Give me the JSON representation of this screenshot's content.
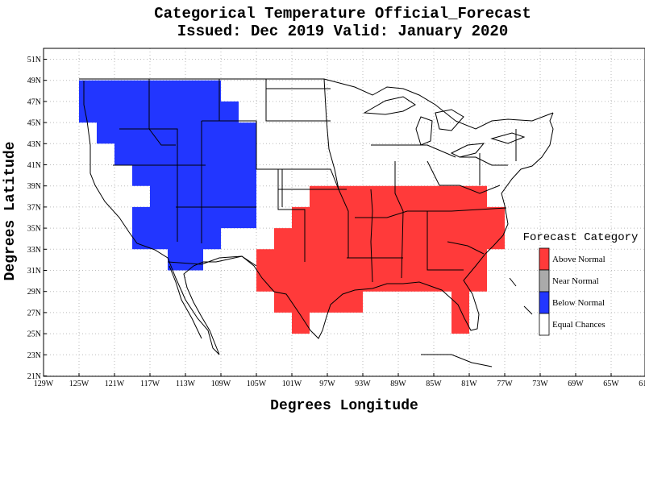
{
  "title": {
    "line1": "Categorical Temperature Official_Forecast",
    "line2": "Issued: Dec 2019 Valid: January 2020"
  },
  "axes": {
    "xlabel": "Degrees Longitude",
    "ylabel": "Degrees Latitude",
    "x_ticks": [
      "129W",
      "125W",
      "121W",
      "117W",
      "113W",
      "109W",
      "105W",
      "101W",
      "97W",
      "93W",
      "89W",
      "85W",
      "81W",
      "77W",
      "73W",
      "69W",
      "65W",
      "61W"
    ],
    "y_ticks": [
      "51N",
      "49N",
      "47N",
      "45N",
      "43N",
      "41N",
      "39N",
      "37N",
      "35N",
      "33N",
      "31N",
      "29N",
      "27N",
      "25N",
      "23N",
      "21N"
    ],
    "lon_range": [
      -129,
      -61
    ],
    "lat_range": [
      21,
      52
    ]
  },
  "legend": {
    "title": "Forecast Category",
    "items": [
      {
        "label": "Above Normal",
        "color": "#ff3a3a"
      },
      {
        "label": "Near Normal",
        "color": "#aaaaaa"
      },
      {
        "label": "Below Normal",
        "color": "#2236ff"
      },
      {
        "label": "Equal Chances",
        "color": "#ffffff"
      }
    ]
  },
  "regions": {
    "above_normal": {
      "color": "#ff3a3a",
      "polygon": [
        [
          -97,
          39
        ],
        [
          -79,
          39
        ],
        [
          -79,
          37
        ],
        [
          -77,
          37
        ],
        [
          -77,
          33
        ],
        [
          -79,
          33
        ],
        [
          -79,
          29
        ],
        [
          -81,
          29
        ],
        [
          -81,
          25
        ],
        [
          -83,
          25
        ],
        [
          -83,
          29
        ],
        [
          -93,
          29
        ],
        [
          -93,
          27
        ],
        [
          -99,
          27
        ],
        [
          -99,
          25
        ],
        [
          -101,
          25
        ],
        [
          -101,
          27
        ],
        [
          -103,
          27
        ],
        [
          -103,
          29
        ],
        [
          -105,
          29
        ],
        [
          -105,
          33
        ],
        [
          -103,
          33
        ],
        [
          -103,
          35
        ],
        [
          -101,
          35
        ],
        [
          -101,
          37
        ],
        [
          -99,
          37
        ],
        [
          -99,
          39
        ]
      ]
    },
    "below_normal": {
      "color": "#2236ff",
      "polygon": [
        [
          -125,
          49
        ],
        [
          -109,
          49
        ],
        [
          -109,
          47
        ],
        [
          -107,
          47
        ],
        [
          -107,
          45
        ],
        [
          -105,
          45
        ],
        [
          -105,
          35
        ],
        [
          -109,
          35
        ],
        [
          -109,
          33
        ],
        [
          -111,
          33
        ],
        [
          -111,
          31
        ],
        [
          -115,
          31
        ],
        [
          -115,
          33
        ],
        [
          -119,
          33
        ],
        [
          -119,
          37
        ],
        [
          -117,
          37
        ],
        [
          -117,
          39
        ],
        [
          -119,
          39
        ],
        [
          -119,
          41
        ],
        [
          -121,
          41
        ],
        [
          -121,
          43
        ],
        [
          -123,
          43
        ],
        [
          -123,
          45
        ],
        [
          -125,
          45
        ]
      ]
    }
  }
}
